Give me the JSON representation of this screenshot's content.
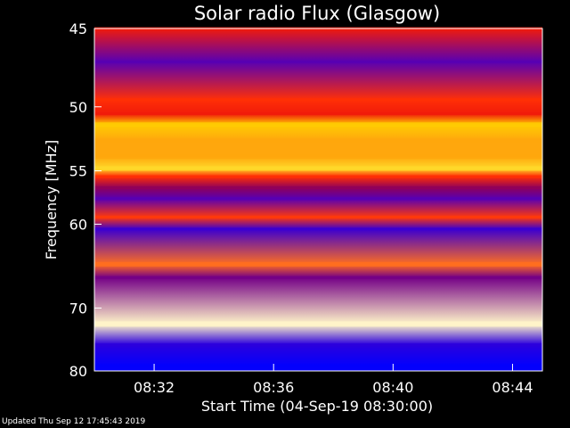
{
  "chart_data": {
    "type": "heatmap",
    "title": "Solar radio Flux (Glasgow)",
    "xlabel": "Start Time (04-Sep-19 08:30:00)",
    "ylabel": "Frequency [MHz]",
    "xlim": [
      "08:30",
      "08:45"
    ],
    "ylim": [
      45,
      80
    ],
    "x_ticks": [
      {
        "label": "08:32",
        "minute": 2
      },
      {
        "label": "08:36",
        "minute": 6
      },
      {
        "label": "08:40",
        "minute": 10
      },
      {
        "label": "08:44",
        "minute": 14
      }
    ],
    "y_ticks": [
      45,
      50,
      55,
      60,
      70,
      80
    ],
    "y_scale": "reciprocal",
    "colormap": [
      "#0000a0",
      "#0000ff",
      "#5000c0",
      "#a00040",
      "#ff2000",
      "#ff6a20",
      "#ffd000",
      "#ffffff"
    ],
    "bands": [
      {
        "freq_mhz": 45.0,
        "level": 0.55
      },
      {
        "freq_mhz": 47.0,
        "level": 0.3
      },
      {
        "freq_mhz": 49.5,
        "level": 0.6
      },
      {
        "freq_mhz": 50.5,
        "level": 0.55
      },
      {
        "freq_mhz": 51.3,
        "level": 0.85
      },
      {
        "freq_mhz": 52.5,
        "level": 0.8
      },
      {
        "freq_mhz": 53.8,
        "level": 0.8
      },
      {
        "freq_mhz": 54.8,
        "level": 0.88
      },
      {
        "freq_mhz": 55.5,
        "level": 0.6
      },
      {
        "freq_mhz": 56.5,
        "level": 0.4
      },
      {
        "freq_mhz": 57.5,
        "level": 0.3
      },
      {
        "freq_mhz": 59.3,
        "level": 0.62
      },
      {
        "freq_mhz": 60.5,
        "level": 0.25
      },
      {
        "freq_mhz": 64.4,
        "level": 0.72
      },
      {
        "freq_mhz": 66.0,
        "level": 0.35
      },
      {
        "freq_mhz": 72.3,
        "level": 0.97
      },
      {
        "freq_mhz": 75.5,
        "level": 0.22
      },
      {
        "freq_mhz": 79.0,
        "level": 0.15
      }
    ]
  },
  "footer": "Updated Thu Sep 12 17:45:43 2019"
}
